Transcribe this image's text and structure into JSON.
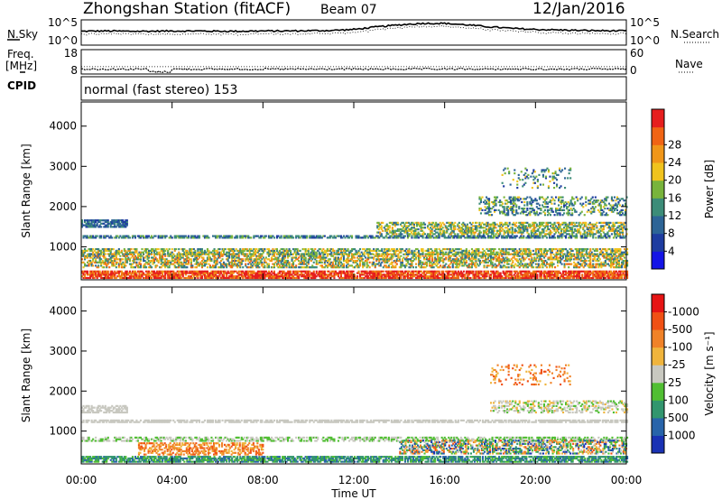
{
  "header": {
    "station": "Zhongshan Station (fitACF)",
    "beam": "Beam 07",
    "date": "12/Jan/2016"
  },
  "side_labels": {
    "nsky": "N.Sky",
    "freq_line1": "Freq.",
    "freq_line2": "[MHz]",
    "cpid": "CPID",
    "nsearch": "N.Search",
    "nave": "Nave"
  },
  "cpid_text": "normal (fast stereo) 153",
  "chart_data": [
    {
      "type": "line",
      "name": "noise",
      "ylabel_left": "N.Sky",
      "ylabel_right": "N.Search",
      "left_ticks": [
        "10^5",
        "10^0"
      ],
      "right_ticks": [
        "10^5",
        "10^0"
      ],
      "x_hours": [
        0,
        1,
        2,
        3,
        4,
        5,
        6,
        7,
        8,
        9,
        10,
        11,
        12,
        13,
        14,
        15,
        16,
        17,
        18,
        19,
        20,
        21,
        22,
        23,
        24
      ],
      "nsky_level": [
        0.55,
        0.56,
        0.55,
        0.55,
        0.56,
        0.56,
        0.55,
        0.55,
        0.56,
        0.56,
        0.57,
        0.58,
        0.62,
        0.72,
        0.8,
        0.86,
        0.86,
        0.8,
        0.72,
        0.66,
        0.62,
        0.6,
        0.58,
        0.57,
        0.56
      ]
    },
    {
      "type": "line",
      "name": "frequency",
      "ylabel_left": "Freq. [MHz]",
      "ylabel_right": "Nave",
      "left_ticks": [
        18,
        8
      ],
      "right_ticks": [
        60,
        0
      ],
      "freq_mhz": [
        10,
        10,
        10,
        8.9,
        10,
        10,
        10,
        10,
        10,
        10,
        10,
        10,
        10,
        10,
        10,
        10,
        10,
        10,
        10,
        10,
        10,
        10,
        10,
        10,
        10
      ],
      "nave": [
        18,
        18,
        18,
        18,
        18,
        18,
        18,
        18,
        18,
        18,
        18,
        18,
        18,
        18,
        18,
        18,
        18,
        18,
        18,
        18,
        18,
        18,
        18,
        18,
        18
      ]
    },
    {
      "type": "heatmap",
      "name": "power",
      "ylabel": "Slant Range [km]",
      "ylim": [
        180,
        4600
      ],
      "yticks": [
        1000,
        2000,
        3000,
        4000
      ],
      "colorbar_label": "Power [dB]",
      "colorbar_ticks": [
        "4",
        "8",
        "12",
        "16",
        "20",
        "24",
        "28"
      ],
      "colorbar_colors": [
        "#1414e6",
        "#1e3ca0",
        "#2d6496",
        "#3c8c78",
        "#78b43c",
        "#f0c31e",
        "#f09619",
        "#f06414",
        "#e61e1e"
      ],
      "bands": [
        {
          "range_km": 300,
          "width_km": 180,
          "t0": 0.0,
          "t1": 24.0,
          "density": 0.8,
          "low": 6,
          "high": 9
        },
        {
          "range_km": 650,
          "width_km": 350,
          "t0": 0.0,
          "t1": 24.0,
          "density": 0.55,
          "low": 2,
          "high": 7
        },
        {
          "range_km": 880,
          "width_km": 150,
          "t0": 0.0,
          "t1": 24.0,
          "density": 0.6,
          "low": 2,
          "high": 6
        },
        {
          "range_km": 1250,
          "width_km": 80,
          "t0": 0.0,
          "t1": 24.0,
          "density": 0.7,
          "low": 1,
          "high": 4
        },
        {
          "range_km": 1580,
          "width_km": 200,
          "t0": 0.0,
          "t1": 2.0,
          "density": 0.7,
          "low": 1,
          "high": 3
        },
        {
          "range_km": 1450,
          "width_km": 300,
          "t0": 13.0,
          "t1": 24.0,
          "density": 0.55,
          "low": 2,
          "high": 6
        },
        {
          "range_km": 2000,
          "width_km": 450,
          "t0": 17.5,
          "t1": 24.0,
          "density": 0.35,
          "low": 1,
          "high": 5
        },
        {
          "range_km": 2700,
          "width_km": 500,
          "t0": 18.5,
          "t1": 21.5,
          "density": 0.15,
          "low": 1,
          "high": 5
        }
      ]
    },
    {
      "type": "heatmap",
      "name": "velocity",
      "ylabel": "Slant Range [km]",
      "ylim": [
        180,
        4600
      ],
      "yticks": [
        1000,
        2000,
        3000,
        4000
      ],
      "xticks": [
        "00:00",
        "04:00",
        "08:00",
        "12:00",
        "16:00",
        "20:00",
        "00:00"
      ],
      "xlabel": "Time UT",
      "colorbar_label": "Velocity [m s⁻¹]",
      "colorbar_ticks": [
        "1000",
        "500",
        "100",
        "25",
        "-25",
        "-100",
        "-500",
        "-1000"
      ],
      "colorbar_colors": [
        "#1a32b4",
        "#2864aa",
        "#32966e",
        "#50be32",
        "#c8c8c0",
        "#f0b43c",
        "#f08228",
        "#f05014",
        "#e61414"
      ],
      "bands": [
        {
          "range_km": 300,
          "width_km": 160,
          "t0": 0.0,
          "t1": 24.0,
          "density": 0.75,
          "low": 1,
          "high": 3
        },
        {
          "range_km": 550,
          "width_km": 300,
          "t0": 2.5,
          "t1": 8.0,
          "density": 0.5,
          "low": 5,
          "high": 7
        },
        {
          "range_km": 800,
          "width_km": 120,
          "t0": 0.0,
          "t1": 24.0,
          "density": 0.55,
          "low": 3,
          "high": 4
        },
        {
          "range_km": 1250,
          "width_km": 80,
          "t0": 0.0,
          "t1": 24.0,
          "density": 0.7,
          "low": 4,
          "high": 4
        },
        {
          "range_km": 1550,
          "width_km": 200,
          "t0": 0.0,
          "t1": 2.0,
          "density": 0.6,
          "low": 4,
          "high": 4
        },
        {
          "range_km": 600,
          "width_km": 350,
          "t0": 14.0,
          "t1": 24.0,
          "density": 0.55,
          "low": 0,
          "high": 7
        },
        {
          "range_km": 1600,
          "width_km": 300,
          "t0": 18.0,
          "t1": 24.0,
          "density": 0.4,
          "low": 3,
          "high": 5
        },
        {
          "range_km": 2400,
          "width_km": 500,
          "t0": 18.0,
          "t1": 21.5,
          "density": 0.15,
          "low": 5,
          "high": 7
        }
      ]
    }
  ]
}
